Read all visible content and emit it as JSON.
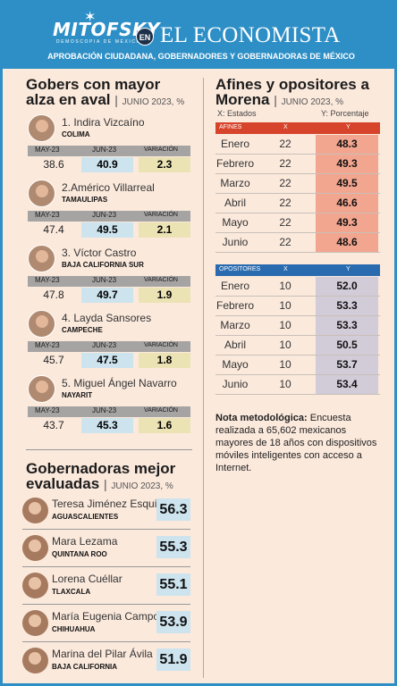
{
  "header": {
    "brand": "MITOFSKY",
    "brand_sub": "DEMOSCOPIA DE MÉXICO",
    "connector": "EN",
    "newspaper": "EL ECONOMISTA",
    "subtitle": "APROBACIÓN CIUDADANA, GOBERNADORES Y GOBERNADORAS DE MÉXICO",
    "brand_color": "#2e8fc6"
  },
  "top_gobers": {
    "title_line1": "Gobers con mayor",
    "title_line2": "alza en aval",
    "period": "JUNIO 2023, %",
    "columns": [
      "MAY-23",
      "JUN-23",
      "VARIACIÓN"
    ],
    "items": [
      {
        "name": "1. Indira Vizcaíno",
        "state": "COLIMA",
        "may": "38.6",
        "jun": "40.9",
        "var": "2.3"
      },
      {
        "name": "2.Américo Villarreal",
        "state": "TAMAULIPAS",
        "may": "47.4",
        "jun": "49.5",
        "var": "2.1"
      },
      {
        "name": "3. Víctor Castro",
        "state": "BAJA  CALIFORNIA  SUR",
        "may": "47.8",
        "jun": "49.7",
        "var": "1.9"
      },
      {
        "name": "4. Layda Sansores",
        "state": "CAMPECHE",
        "may": "45.7",
        "jun": "47.5",
        "var": "1.8"
      },
      {
        "name": "5. Miguel Ángel Navarro",
        "state": "NAYARIT",
        "may": "43.7",
        "jun": "45.3",
        "var": "1.6"
      }
    ]
  },
  "women": {
    "title_line1": "Gobernadoras mejor",
    "title_line2": "evaluadas",
    "period": "JUNIO 2023, %",
    "items": [
      {
        "name": "Teresa Jiménez Esquivel",
        "state": "AGUASCALIENTES",
        "score": "56.3"
      },
      {
        "name": "Mara Lezama",
        "state": "QUINTANA  ROO",
        "score": "55.3"
      },
      {
        "name": "Lorena Cuéllar",
        "state": "TLAXCALA",
        "score": "55.1"
      },
      {
        "name": "María Eugenia Campos",
        "state": "CHIHUAHUA",
        "score": "53.9"
      },
      {
        "name": "Marina del Pilar Ávila",
        "state": "BAJA  CALIFORNIA",
        "score": "51.9"
      }
    ]
  },
  "morena": {
    "title_line1": "Afines y opositores a",
    "title_line2": "Morena",
    "period": "JUNIO 2023, %",
    "x_legend": "X: Estados",
    "y_legend": "Y: Porcentaje",
    "afines": {
      "label": "AFINES",
      "x": "X",
      "y": "Y",
      "header_color": "#d6452b",
      "cell_color": "#f2a58f",
      "rows": [
        {
          "month": "Enero",
          "x": "22",
          "y": "48.3"
        },
        {
          "month": "Febrero",
          "x": "22",
          "y": "49.3"
        },
        {
          "month": "Marzo",
          "x": "22",
          "y": "49.5"
        },
        {
          "month": "Abril",
          "x": "22",
          "y": "46.6"
        },
        {
          "month": "Mayo",
          "x": "22",
          "y": "49.3"
        },
        {
          "month": "Junio",
          "x": "22",
          "y": "48.6"
        }
      ]
    },
    "opositores": {
      "label": "OPOSITORES",
      "x": "X",
      "y": "Y",
      "header_color": "#2a6bb0",
      "cell_color": "#d2cbd8",
      "rows": [
        {
          "month": "Enero",
          "x": "10",
          "y": "52.0"
        },
        {
          "month": "Febrero",
          "x": "10",
          "y": "53.3"
        },
        {
          "month": "Marzo",
          "x": "10",
          "y": "53.3"
        },
        {
          "month": "Abril",
          "x": "10",
          "y": "50.5"
        },
        {
          "month": "Mayo",
          "x": "10",
          "y": "53.7"
        },
        {
          "month": "Junio",
          "x": "10",
          "y": "53.4"
        }
      ]
    }
  },
  "note": {
    "label": "Nota metodológica:",
    "text": " Encuesta realizada a 65,602 mexicanos mayores de 18 años con dispositivos móviles inteligentes con acceso a Internet."
  }
}
